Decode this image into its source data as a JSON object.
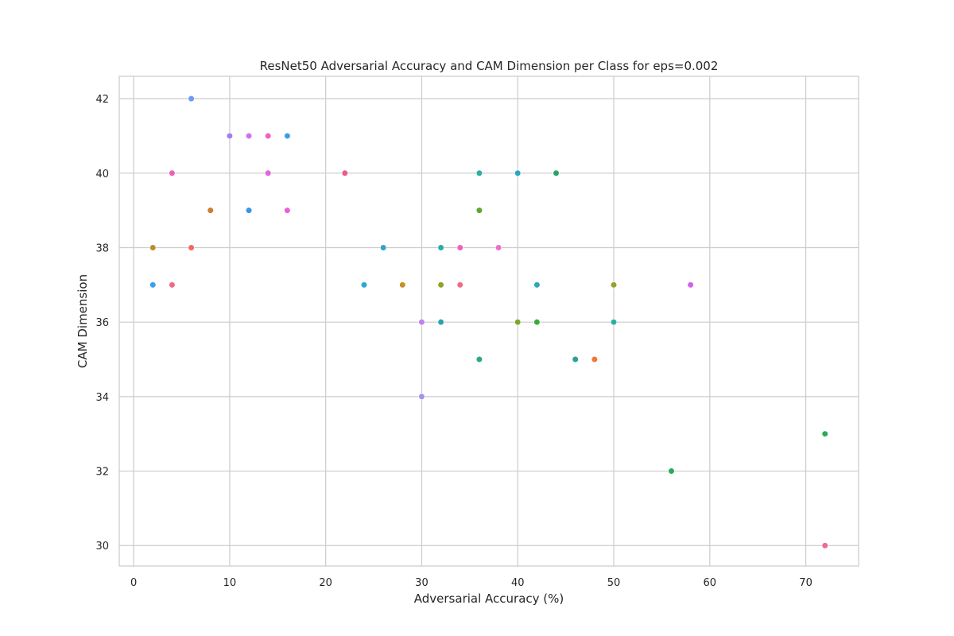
{
  "chart_data": {
    "type": "scatter",
    "title": "ResNet50 Adversarial Accuracy and CAM Dimension per Class for eps=0.002",
    "xlabel": "Adversarial Accuracy (%)",
    "ylabel": "CAM Dimension",
    "xlim": [
      -1.5,
      75.5
    ],
    "ylim": [
      29.45,
      42.6
    ],
    "xticks": [
      0,
      10,
      20,
      30,
      40,
      50,
      60,
      70
    ],
    "yticks": [
      30,
      32,
      34,
      36,
      38,
      40,
      42
    ],
    "grid": true,
    "legend": "none",
    "points": [
      {
        "x": 6,
        "y": 42,
        "color": "#6e9bf4"
      },
      {
        "x": 10,
        "y": 41,
        "color": "#a37cf0"
      },
      {
        "x": 12,
        "y": 41,
        "color": "#cf6ef0"
      },
      {
        "x": 14,
        "y": 41,
        "color": "#f060c8"
      },
      {
        "x": 16,
        "y": 41,
        "color": "#3a9ee8"
      },
      {
        "x": 4,
        "y": 40,
        "color": "#f25fb4"
      },
      {
        "x": 14,
        "y": 40,
        "color": "#e85fe0"
      },
      {
        "x": 22,
        "y": 40,
        "color": "#ec5b8c"
      },
      {
        "x": 36,
        "y": 40,
        "color": "#2ab0a0"
      },
      {
        "x": 40,
        "y": 40,
        "color": "#2aa6c0"
      },
      {
        "x": 44,
        "y": 40,
        "color": "#27a862"
      },
      {
        "x": 8,
        "y": 39,
        "color": "#cc7f30"
      },
      {
        "x": 12,
        "y": 39,
        "color": "#3a96e4"
      },
      {
        "x": 16,
        "y": 39,
        "color": "#ec5fd8"
      },
      {
        "x": 36,
        "y": 39,
        "color": "#5aa832"
      },
      {
        "x": 2,
        "y": 38,
        "color": "#be8c30"
      },
      {
        "x": 6,
        "y": 38,
        "color": "#f26a5e"
      },
      {
        "x": 26,
        "y": 38,
        "color": "#32a4c8"
      },
      {
        "x": 32,
        "y": 38,
        "color": "#2aaaa8"
      },
      {
        "x": 34,
        "y": 38,
        "color": "#ee5fc4"
      },
      {
        "x": 38,
        "y": 38,
        "color": "#ec6fcc"
      },
      {
        "x": 2,
        "y": 37,
        "color": "#3aa0e8"
      },
      {
        "x": 4,
        "y": 37,
        "color": "#f46a80"
      },
      {
        "x": 24,
        "y": 37,
        "color": "#2ea8d0"
      },
      {
        "x": 28,
        "y": 37,
        "color": "#c98e24"
      },
      {
        "x": 32,
        "y": 37,
        "color": "#8ea32a"
      },
      {
        "x": 34,
        "y": 37,
        "color": "#f26a84"
      },
      {
        "x": 42,
        "y": 37,
        "color": "#2ea8b8"
      },
      {
        "x": 50,
        "y": 37,
        "color": "#9aa02a"
      },
      {
        "x": 58,
        "y": 37,
        "color": "#d460ee"
      },
      {
        "x": 30,
        "y": 36,
        "color": "#c27ef0"
      },
      {
        "x": 32,
        "y": 36,
        "color": "#2aa4ac"
      },
      {
        "x": 40,
        "y": 36,
        "color": "#7aa82a"
      },
      {
        "x": 42,
        "y": 36,
        "color": "#3aab3a"
      },
      {
        "x": 50,
        "y": 36,
        "color": "#2ab0a0"
      },
      {
        "x": 36,
        "y": 35,
        "color": "#2aa88a"
      },
      {
        "x": 46,
        "y": 35,
        "color": "#30a090"
      },
      {
        "x": 48,
        "y": 35,
        "color": "#f0783a"
      },
      {
        "x": 30,
        "y": 34,
        "color": "#a890f0"
      },
      {
        "x": 72,
        "y": 33,
        "color": "#2aac58"
      },
      {
        "x": 56,
        "y": 32,
        "color": "#2aaa58"
      },
      {
        "x": 72,
        "y": 30,
        "color": "#f06a90"
      }
    ]
  }
}
